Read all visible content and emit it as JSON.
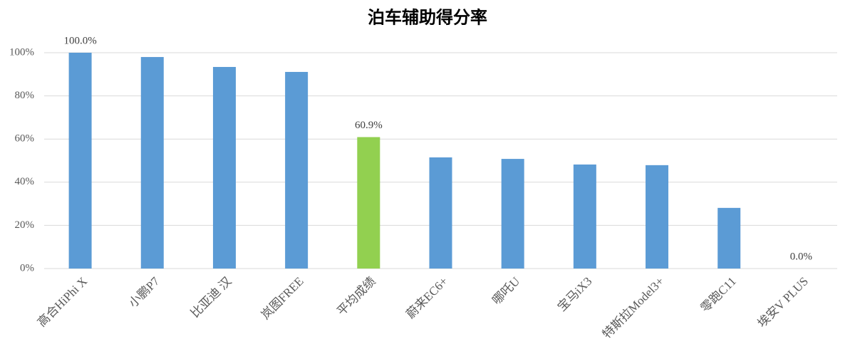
{
  "chart_data": {
    "type": "bar",
    "title": "泊车辅助得分率",
    "categories": [
      "高合HiPhi X",
      "小鹏P7",
      "比亚迪 汉",
      "岚图FREE",
      "平均成绩",
      "蔚来EC6+",
      "哪吒U",
      "宝马iX3",
      "特斯拉Model3+",
      "零跑C11",
      "埃安V PLUS"
    ],
    "values": [
      100.0,
      98.0,
      93.4,
      91.1,
      60.9,
      51.5,
      50.8,
      48.2,
      47.9,
      28.1,
      0.0
    ],
    "value_labels": [
      "100.0%",
      null,
      null,
      null,
      "60.9%",
      null,
      null,
      null,
      null,
      null,
      "0.0%"
    ],
    "colors": [
      "#5b9bd5",
      "#5b9bd5",
      "#5b9bd5",
      "#5b9bd5",
      "#92d050",
      "#5b9bd5",
      "#5b9bd5",
      "#5b9bd5",
      "#5b9bd5",
      "#5b9bd5",
      "#5b9bd5"
    ],
    "ylim": [
      0,
      100
    ],
    "yticks": [
      {
        "value": 0,
        "label": "0%"
      },
      {
        "value": 20,
        "label": "20%"
      },
      {
        "value": 40,
        "label": "40%"
      },
      {
        "value": 60,
        "label": "60%"
      },
      {
        "value": 80,
        "label": "80%"
      },
      {
        "value": 100,
        "label": "100%"
      }
    ],
    "grid": true
  }
}
